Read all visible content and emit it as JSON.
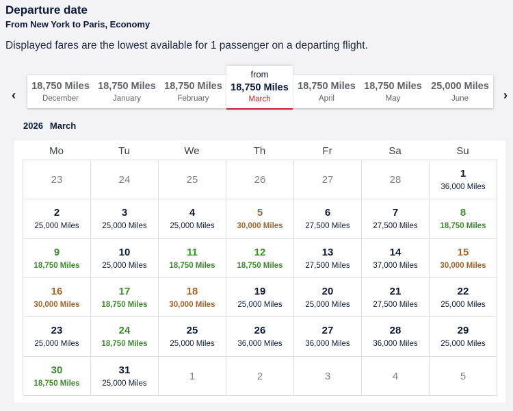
{
  "header": {
    "title": "Departure date",
    "subtitle": "From New York to Paris, Economy",
    "note": "Displayed fares are the lowest available for 1 passenger on a departing flight."
  },
  "nav": {
    "prev": "‹",
    "next": "›"
  },
  "months": [
    {
      "price": "18,750 Miles",
      "name": "December"
    },
    {
      "price": "18,750 Miles",
      "name": "January"
    },
    {
      "price": "18,750 Miles",
      "name": "February"
    },
    {
      "price": "18,750 Miles",
      "name": "March",
      "from": "from",
      "selected": true
    },
    {
      "price": "18,750 Miles",
      "name": "April"
    },
    {
      "price": "18,750 Miles",
      "name": "May"
    },
    {
      "price": "25,000 Miles",
      "name": "June"
    }
  ],
  "calendar": {
    "year": "2026",
    "month": "March",
    "weekdays": [
      "Mo",
      "Tu",
      "We",
      "Th",
      "Fr",
      "Sa",
      "Su"
    ],
    "colors": {
      "standard": "#0b1a3a",
      "low": "#3d8b2f",
      "high": "#a5642b",
      "muted": "#7d808a"
    },
    "days": [
      {
        "day": "23",
        "muted": true
      },
      {
        "day": "24",
        "muted": true
      },
      {
        "day": "25",
        "muted": true
      },
      {
        "day": "26",
        "muted": true
      },
      {
        "day": "27",
        "muted": true
      },
      {
        "day": "28",
        "muted": true
      },
      {
        "day": "1",
        "fare": "36,000 Miles",
        "tier": "standard"
      },
      {
        "day": "2",
        "fare": "25,000 Miles",
        "tier": "standard"
      },
      {
        "day": "3",
        "fare": "25,000 Miles",
        "tier": "standard"
      },
      {
        "day": "4",
        "fare": "25,000 Miles",
        "tier": "standard"
      },
      {
        "day": "5",
        "fare": "30,000 Miles",
        "tier": "high"
      },
      {
        "day": "6",
        "fare": "27,500 Miles",
        "tier": "standard"
      },
      {
        "day": "7",
        "fare": "27,500 Miles",
        "tier": "standard"
      },
      {
        "day": "8",
        "fare": "18,750 Miles",
        "tier": "low"
      },
      {
        "day": "9",
        "fare": "18,750 Miles",
        "tier": "low"
      },
      {
        "day": "10",
        "fare": "25,000 Miles",
        "tier": "standard"
      },
      {
        "day": "11",
        "fare": "18,750 Miles",
        "tier": "low"
      },
      {
        "day": "12",
        "fare": "18,750 Miles",
        "tier": "low"
      },
      {
        "day": "13",
        "fare": "27,500 Miles",
        "tier": "standard"
      },
      {
        "day": "14",
        "fare": "37,000 Miles",
        "tier": "standard"
      },
      {
        "day": "15",
        "fare": "30,000 Miles",
        "tier": "high"
      },
      {
        "day": "16",
        "fare": "30,000 Miles",
        "tier": "high"
      },
      {
        "day": "17",
        "fare": "18,750 Miles",
        "tier": "low"
      },
      {
        "day": "18",
        "fare": "30,000 Miles",
        "tier": "high"
      },
      {
        "day": "19",
        "fare": "25,000 Miles",
        "tier": "standard"
      },
      {
        "day": "20",
        "fare": "25,000 Miles",
        "tier": "standard"
      },
      {
        "day": "21",
        "fare": "27,500 Miles",
        "tier": "standard"
      },
      {
        "day": "22",
        "fare": "25,000 Miles",
        "tier": "standard"
      },
      {
        "day": "23",
        "fare": "25,000 Miles",
        "tier": "standard"
      },
      {
        "day": "24",
        "fare": "18,750 Miles",
        "tier": "low"
      },
      {
        "day": "25",
        "fare": "25,000 Miles",
        "tier": "standard"
      },
      {
        "day": "26",
        "fare": "36,000 Miles",
        "tier": "standard"
      },
      {
        "day": "27",
        "fare": "36,000 Miles",
        "tier": "standard"
      },
      {
        "day": "28",
        "fare": "36,000 Miles",
        "tier": "standard"
      },
      {
        "day": "29",
        "fare": "25,000 Miles",
        "tier": "standard"
      },
      {
        "day": "30",
        "fare": "18,750 Miles",
        "tier": "low"
      },
      {
        "day": "31",
        "fare": "25,000 Miles",
        "tier": "standard"
      },
      {
        "day": "1",
        "muted": true
      },
      {
        "day": "2",
        "muted": true
      },
      {
        "day": "3",
        "muted": true
      },
      {
        "day": "4",
        "muted": true
      },
      {
        "day": "5",
        "muted": true
      }
    ]
  }
}
